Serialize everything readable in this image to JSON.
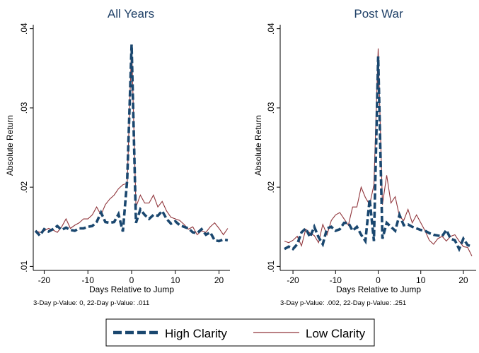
{
  "chart_data": [
    {
      "type": "line",
      "title": "All Years",
      "xlabel": "Days Relative to Jump",
      "ylabel": "Absolute Return",
      "note": "3-Day p-Value: 0, 22-Day p-Value: .011",
      "xlim": [
        -22.5,
        22.5
      ],
      "ylim": [
        0.0095,
        0.0405
      ],
      "x_ticks": [
        -20,
        -10,
        0,
        10,
        20
      ],
      "x_tick_labels": [
        "-20",
        "-10",
        "0",
        "10",
        "20"
      ],
      "y_ticks": [
        0.01,
        0.02,
        0.03,
        0.04
      ],
      "y_tick_labels": [
        ".01",
        ".02",
        ".03",
        ".04"
      ],
      "grid": false,
      "x": [
        -22,
        -21,
        -20,
        -19,
        -18,
        -17,
        -16,
        -15,
        -14,
        -13,
        -12,
        -11,
        -10,
        -9,
        -8,
        -7,
        -6,
        -5,
        -4,
        -3,
        -2,
        -1,
        0,
        1,
        2,
        3,
        4,
        5,
        6,
        7,
        8,
        9,
        10,
        11,
        12,
        13,
        14,
        15,
        16,
        17,
        18,
        19,
        20,
        21,
        22
      ],
      "series": [
        {
          "name": "High Clarity",
          "style": "dashed",
          "color": "#1a476f",
          "values": [
            0.0145,
            0.0139,
            0.0147,
            0.0144,
            0.0147,
            0.0151,
            0.0146,
            0.0149,
            0.0146,
            0.0145,
            0.0148,
            0.0148,
            0.015,
            0.0151,
            0.0156,
            0.0168,
            0.0156,
            0.0155,
            0.0156,
            0.0166,
            0.0144,
            0.021,
            0.038,
            0.0155,
            0.0172,
            0.0165,
            0.016,
            0.0165,
            0.0164,
            0.017,
            0.016,
            0.0154,
            0.0157,
            0.0152,
            0.015,
            0.0148,
            0.0143,
            0.0142,
            0.0147,
            0.014,
            0.0143,
            0.0133,
            0.0132,
            0.0134,
            0.0133
          ]
        },
        {
          "name": "Low Clarity",
          "style": "solid",
          "color": "#90353b",
          "values": [
            0.0145,
            0.0143,
            0.0145,
            0.0148,
            0.0146,
            0.0143,
            0.015,
            0.016,
            0.0148,
            0.0152,
            0.0155,
            0.016,
            0.016,
            0.0165,
            0.0175,
            0.0165,
            0.0178,
            0.0185,
            0.019,
            0.0198,
            0.0203,
            0.0205,
            0.038,
            0.0175,
            0.019,
            0.018,
            0.018,
            0.019,
            0.0175,
            0.0182,
            0.017,
            0.0162,
            0.016,
            0.0158,
            0.0153,
            0.0147,
            0.015,
            0.014,
            0.0145,
            0.0143,
            0.015,
            0.0155,
            0.0148,
            0.014,
            0.0148
          ]
        }
      ]
    },
    {
      "type": "line",
      "title": "Post War",
      "xlabel": "Days Relative to Jump",
      "ylabel": "Absolute Return",
      "note": "3-Day p-Value: .002, 22-Day p-Value: .251",
      "xlim": [
        -23,
        23
      ],
      "ylim": [
        0.0095,
        0.0405
      ],
      "x_ticks": [
        -20,
        -10,
        0,
        10,
        20
      ],
      "x_tick_labels": [
        "-20",
        "-10",
        "0",
        "10",
        "20"
      ],
      "y_ticks": [
        0.01,
        0.02,
        0.03,
        0.04
      ],
      "y_tick_labels": [
        ".01",
        ".02",
        ".03",
        ".04"
      ],
      "grid": false,
      "x": [
        -22,
        -21,
        -20,
        -19,
        -18,
        -17,
        -16,
        -15,
        -14,
        -13,
        -12,
        -11,
        -10,
        -9,
        -8,
        -7,
        -6,
        -5,
        -4,
        -3,
        -2,
        -1,
        0,
        1,
        2,
        3,
        4,
        5,
        6,
        7,
        8,
        9,
        10,
        11,
        12,
        13,
        14,
        15,
        16,
        17,
        18,
        19,
        20,
        21,
        22
      ],
      "series": [
        {
          "name": "High Clarity",
          "style": "dashed",
          "color": "#1a476f",
          "values": [
            0.0122,
            0.0125,
            0.0122,
            0.0128,
            0.0143,
            0.0148,
            0.0137,
            0.015,
            0.0137,
            0.0128,
            0.0148,
            0.015,
            0.0145,
            0.0147,
            0.0155,
            0.0155,
            0.0145,
            0.015,
            0.014,
            0.0132,
            0.0185,
            0.0132,
            0.0365,
            0.0135,
            0.0155,
            0.015,
            0.0145,
            0.0165,
            0.0152,
            0.0153,
            0.015,
            0.0148,
            0.0146,
            0.0145,
            0.0142,
            0.014,
            0.0139,
            0.0138,
            0.0146,
            0.0135,
            0.0133,
            0.0122,
            0.0135,
            0.0127,
            0.0125
          ]
        },
        {
          "name": "Low Clarity",
          "style": "solid",
          "color": "#90353b",
          "values": [
            0.0132,
            0.013,
            0.0133,
            0.0138,
            0.0126,
            0.0147,
            0.0142,
            0.0139,
            0.013,
            0.0153,
            0.014,
            0.0158,
            0.0165,
            0.0168,
            0.016,
            0.0152,
            0.0175,
            0.0175,
            0.02,
            0.0187,
            0.0178,
            0.0203,
            0.0375,
            0.0178,
            0.0215,
            0.018,
            0.0188,
            0.0163,
            0.0158,
            0.0172,
            0.0155,
            0.0165,
            0.0155,
            0.0145,
            0.0133,
            0.0128,
            0.0135,
            0.0138,
            0.0132,
            0.0138,
            0.014,
            0.0132,
            0.0125,
            0.0124,
            0.0113
          ]
        }
      ]
    }
  ],
  "legend": {
    "position": "bottom",
    "items": [
      {
        "label": "High Clarity",
        "style": "dashed",
        "color": "#1a476f"
      },
      {
        "label": "Low Clarity",
        "style": "solid",
        "color": "#90353b"
      }
    ]
  }
}
